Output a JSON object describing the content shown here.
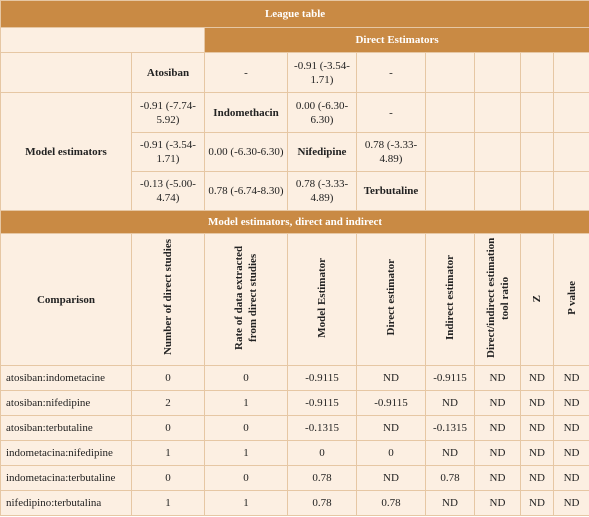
{
  "header": {
    "title": "League table"
  },
  "direct_header": "Direct Estimators",
  "league": {
    "row_label": "Model estimators",
    "rows": [
      [
        "Atosiban",
        "-",
        "-0.91 (-3.54-1.71)",
        "-"
      ],
      [
        "-0.91 (-7.74-5.92)",
        "Indomethacin",
        "0.00 (-6.30-6.30)",
        "-"
      ],
      [
        "-0.91 (-3.54-1.71)",
        "0.00 (-6.30-6.30)",
        "Nifedipine",
        "0.78 (-3.33-4.89)"
      ],
      [
        "-0.13 (-5.00-4.74)",
        "0.78 (-6.74-8.30)",
        "0.78 (-3.33-4.89)",
        "Terbutaline"
      ]
    ]
  },
  "table": {
    "title": "Model estimators, direct and indirect",
    "columns": [
      "Comparison",
      "Number of direct studies",
      "Rate of data extracted from direct studies",
      "Model Estimator",
      "Direct estimator",
      "Indirect estimator",
      "Direct/indirect estimation tool ratio",
      "Z",
      "P value"
    ],
    "rows": [
      [
        "atosiban:indometacine",
        0,
        0,
        -0.9115,
        "ND",
        -0.9115,
        "ND",
        "ND",
        "ND"
      ],
      [
        "atosiban:nifedipine",
        2,
        1,
        -0.9115,
        -0.9115,
        "ND",
        "ND",
        "ND",
        "ND"
      ],
      [
        "atosiban:terbutaline",
        0,
        0,
        -0.1315,
        "ND",
        -0.1315,
        "ND",
        "ND",
        "ND"
      ],
      [
        "indometacina:nifedipine",
        1,
        1,
        0,
        0,
        "ND",
        "ND",
        "ND",
        "ND"
      ],
      [
        "indometacina:terbutaline",
        0,
        0,
        0.78,
        "ND",
        0.78,
        "ND",
        "ND",
        "ND"
      ],
      [
        "nifedipino:terbutalina",
        1,
        1,
        0.78,
        0.78,
        "ND",
        "ND",
        "ND",
        "ND"
      ]
    ]
  }
}
